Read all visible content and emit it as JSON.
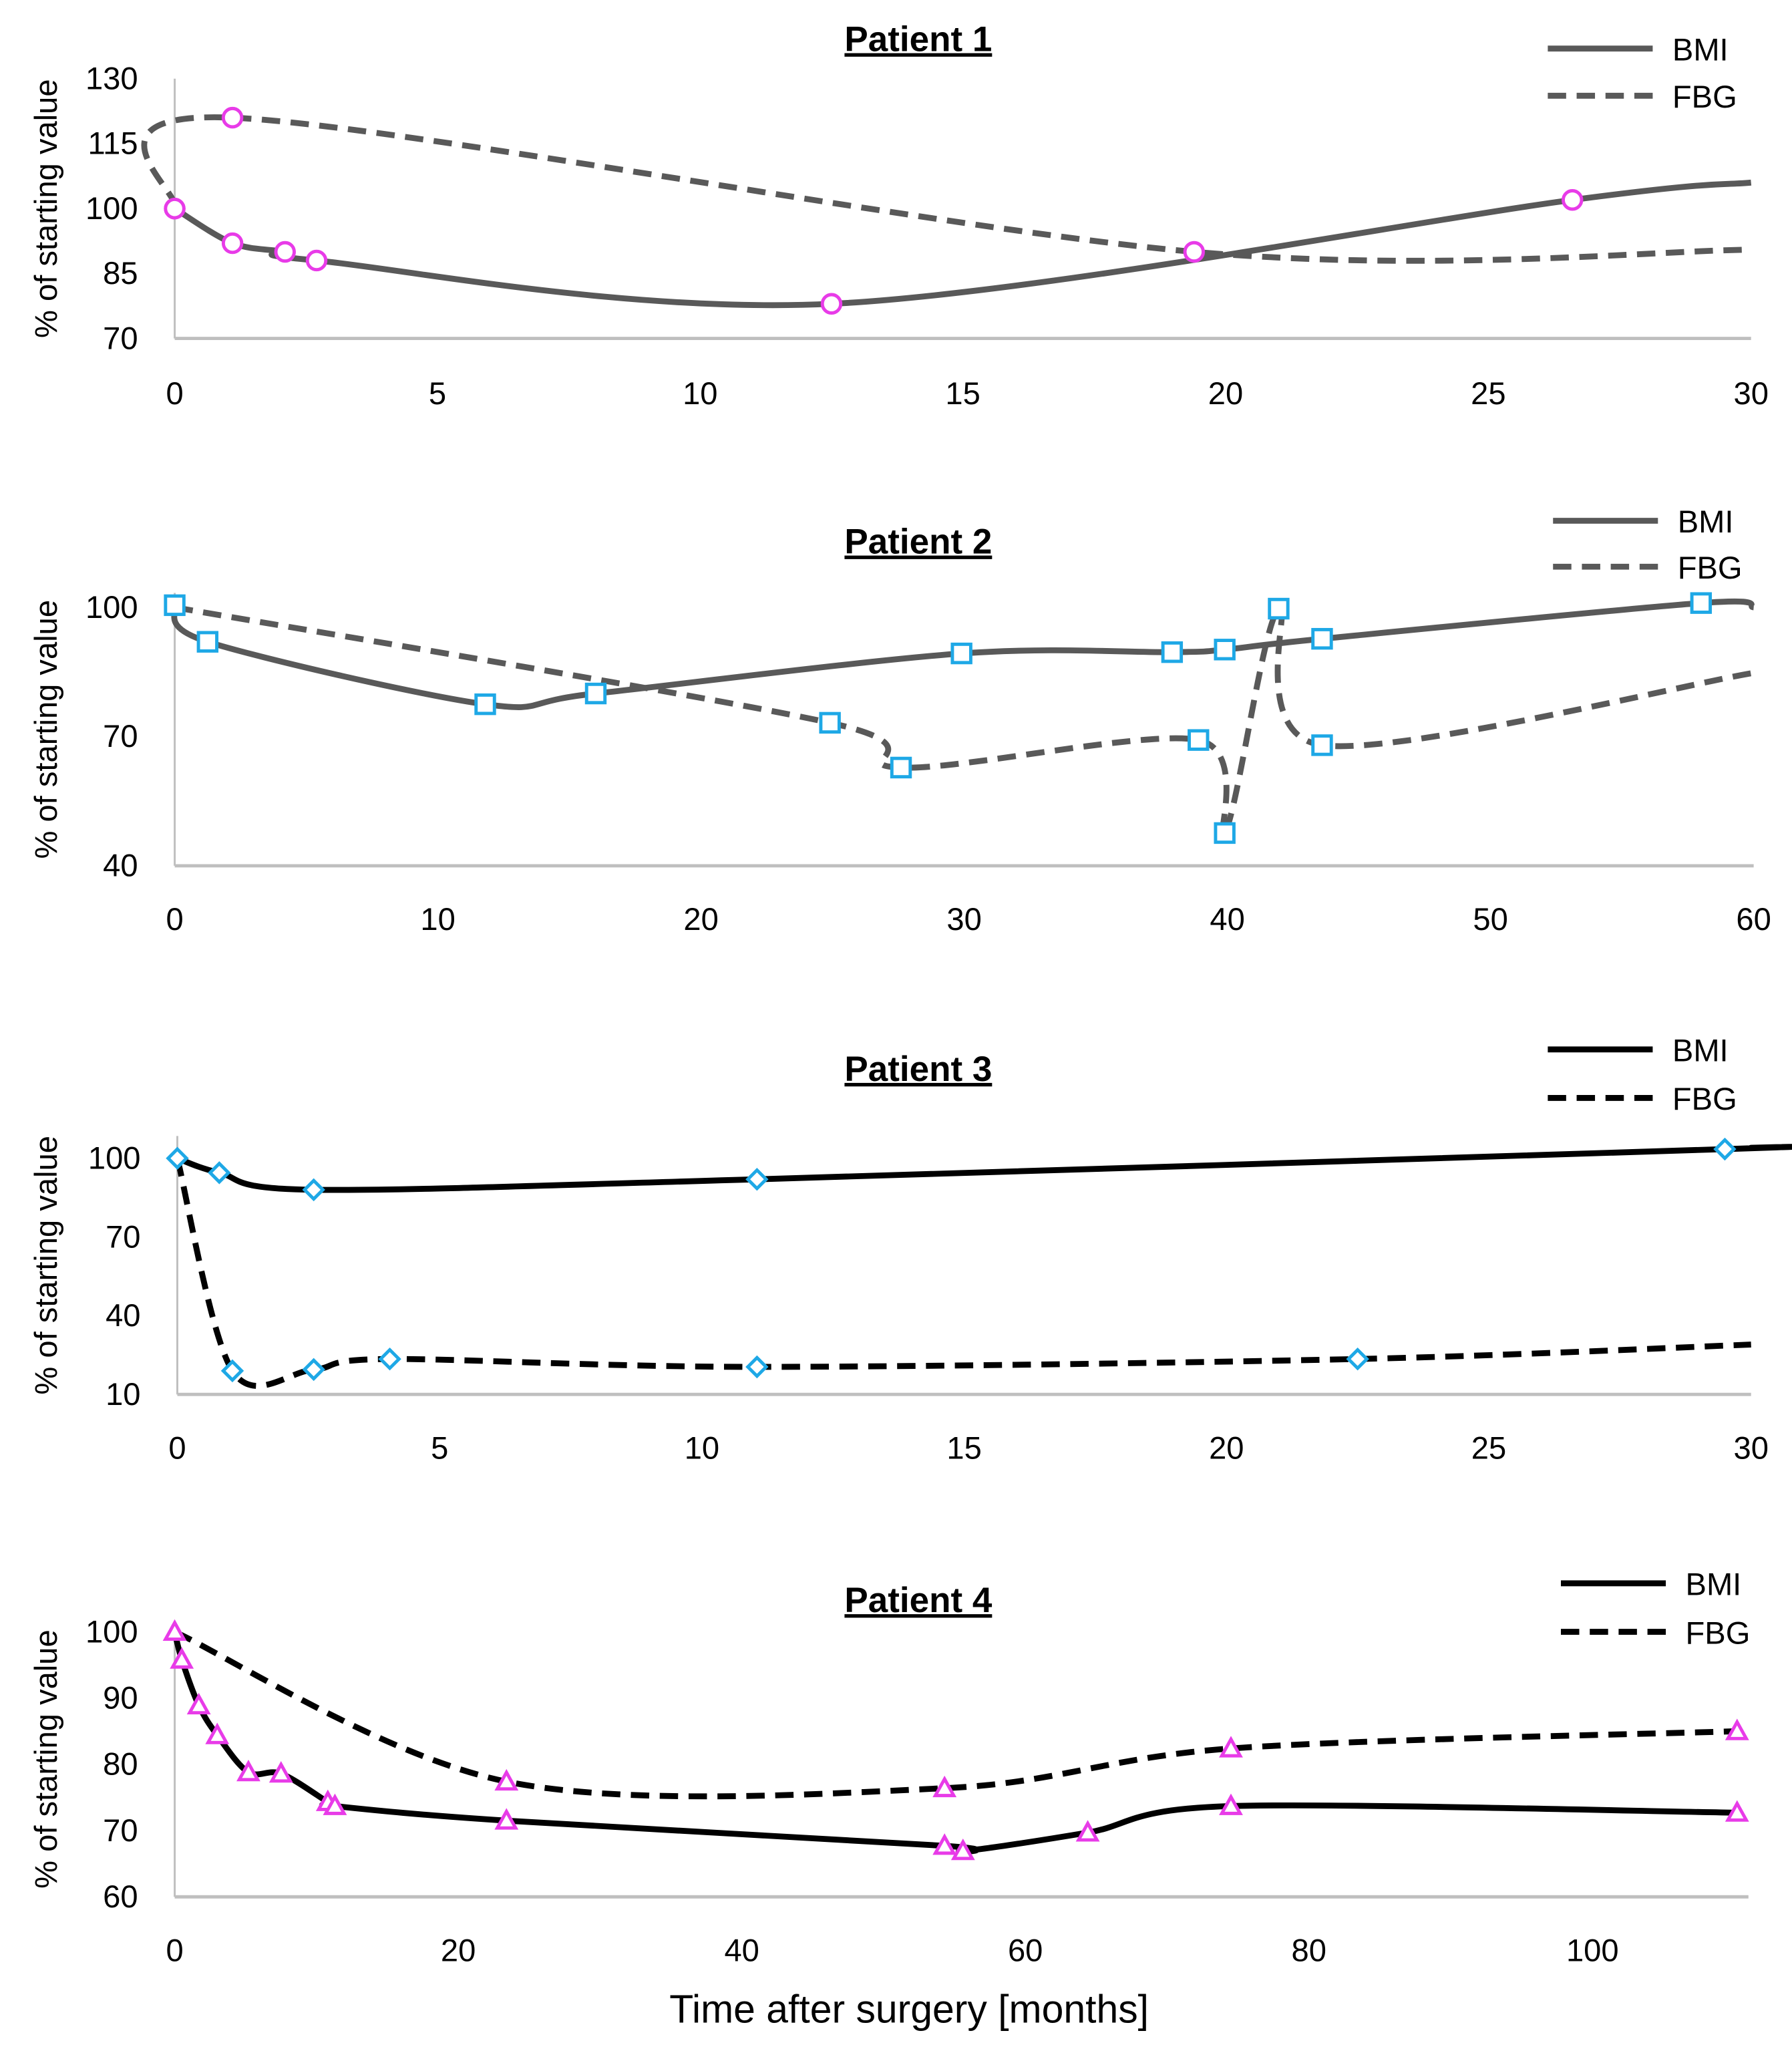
{
  "chart_data": [
    {
      "type": "line",
      "title": "Patient 1",
      "xlabel": "",
      "ylabel": "% of starting value",
      "xlim": [
        0,
        30
      ],
      "ylim": [
        70,
        130
      ],
      "xticks": [
        0,
        5,
        10,
        15,
        20,
        25,
        30
      ],
      "yticks": [
        70,
        85,
        100,
        115,
        130
      ],
      "legend_position": "top-right",
      "color": "#595959",
      "marker": "circle",
      "marker_color": "#e83be8",
      "series": [
        {
          "name": "BMI",
          "style": "solid",
          "x": [
            0,
            1.1,
            2.1,
            2.7,
            12.5,
            26.6,
            30
          ],
          "y": [
            100,
            92,
            90,
            88,
            78,
            102,
            106
          ],
          "markers": [
            0,
            1,
            2,
            3,
            4,
            5
          ]
        },
        {
          "name": "FBG",
          "style": "dashed",
          "x": [
            0,
            1.1,
            19.4,
            30
          ],
          "y": [
            100,
            121,
            90,
            90.5
          ],
          "markers": [
            0,
            1,
            2
          ]
        }
      ]
    },
    {
      "type": "line",
      "title": "Patient 2",
      "xlabel": "",
      "ylabel": "% of starting value",
      "xlim": [
        0,
        60
      ],
      "ylim": [
        40,
        100
      ],
      "xticks": [
        0,
        10,
        20,
        30,
        40,
        50,
        60
      ],
      "yticks": [
        40,
        70,
        100
      ],
      "legend_position": "top-right",
      "color": "#595959",
      "marker": "square",
      "marker_color": "#1ea8e6",
      "series": [
        {
          "name": "BMI",
          "style": "solid",
          "x": [
            0,
            1.25,
            11.8,
            16,
            29.9,
            37.9,
            39.9,
            43.6,
            58,
            60
          ],
          "y": [
            100.5,
            92,
            77.5,
            80,
            89.3,
            89.6,
            90.2,
            92.7,
            101,
            100
          ],
          "markers": [
            0,
            1,
            2,
            3,
            4,
            5,
            6,
            7,
            8
          ]
        },
        {
          "name": "FBG",
          "style": "dashed",
          "x": [
            0,
            24.9,
            27.6,
            38.9,
            39.9,
            41.95,
            43.6,
            60
          ],
          "y": [
            100,
            73.2,
            62.8,
            69.2,
            47.6,
            99.7,
            68,
            84.8
          ],
          "markers": [
            1,
            2,
            3,
            4,
            5,
            6
          ]
        }
      ]
    },
    {
      "type": "line",
      "title": "Patient 3",
      "xlabel": "",
      "ylabel": "% of starting value",
      "xlim": [
        0,
        30
      ],
      "ylim": [
        10,
        100
      ],
      "xticks": [
        0,
        5,
        10,
        15,
        20,
        25,
        30
      ],
      "yticks": [
        10,
        40,
        70,
        100
      ],
      "legend_position": "top-right",
      "color": "#000000",
      "marker": "diamond",
      "marker_color": "#1ea8e6",
      "series": [
        {
          "name": "BMI",
          "style": "solid",
          "x": [
            0,
            0.8,
            2.6,
            11.05,
            29.5,
            30
          ],
          "y": [
            100,
            94.5,
            88,
            92,
            103.5,
            104
          ],
          "markers": [
            0,
            1,
            2,
            3,
            4
          ]
        },
        {
          "name": "FBG",
          "style": "dashed",
          "x": [
            0,
            1.05,
            2.6,
            4.05,
            11.05,
            22.5,
            30
          ],
          "y": [
            100,
            19,
            19.5,
            23.5,
            20.5,
            23.5,
            29
          ],
          "markers": [
            1,
            2,
            3,
            4,
            5
          ]
        }
      ]
    },
    {
      "type": "line",
      "title": "Patient 4",
      "xlabel": "Time after surgery  [months]",
      "ylabel": "% of starting value",
      "xlim": [
        0,
        111
      ],
      "ylim": [
        60,
        100
      ],
      "xticks": [
        0,
        20,
        40,
        60,
        80,
        100
      ],
      "yticks": [
        60,
        70,
        80,
        90,
        100
      ],
      "legend_position": "top-right",
      "color": "#000000",
      "marker": "triangle",
      "marker_color": "#e83be8",
      "series": [
        {
          "name": "BMI",
          "style": "solid",
          "x": [
            0,
            0.5,
            1.7,
            3,
            5.2,
            7.5,
            10.8,
            11.3,
            23.4,
            54.3,
            55.6,
            64.4,
            74.5,
            110.2
          ],
          "y": [
            100,
            95.8,
            88.9,
            84.4,
            78.8,
            78.6,
            74.3,
            73.7,
            71.5,
            67.7,
            66.9,
            69.7,
            73.7,
            72.7
          ],
          "markers": [
            0,
            1,
            2,
            3,
            4,
            5,
            6,
            7,
            8,
            9,
            10,
            11,
            12,
            13
          ]
        },
        {
          "name": "FBG",
          "style": "dashed",
          "x": [
            0,
            23.4,
            54.3,
            74.5,
            110.2
          ],
          "y": [
            100,
            77.4,
            76.4,
            82.4,
            85
          ],
          "markers": [
            1,
            2,
            3,
            4
          ]
        }
      ]
    }
  ]
}
